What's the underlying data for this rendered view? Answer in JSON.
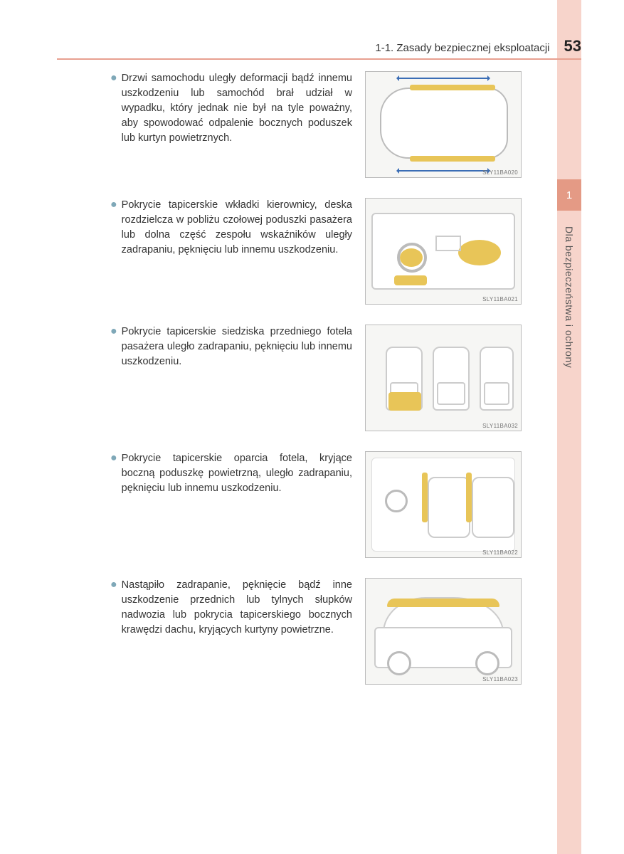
{
  "header": {
    "section_title": "1-1. Zasady bezpiecznej eksploatacji",
    "page_number": "53"
  },
  "side": {
    "chapter_number": "1",
    "chapter_title": "Dla bezpieczeństwa i ochrony"
  },
  "colors": {
    "header_rule": "#e8a090",
    "side_strip": "#f7d4cb",
    "side_tab": "#e49a85",
    "bullet": "#7fa8b8",
    "highlight": "#e8c558",
    "arrow": "#3a6db5",
    "figure_border": "#bbbbbb",
    "figure_bg": "#f6f6f4"
  },
  "items": [
    {
      "text": "Drzwi samochodu uległy deformacji bądź innemu uszkodzeniu lub samochód brał udział w wypadku, który jednak nie był na tyle poważny, aby spowodować odpalenie bocznych poduszek lub kurtyn powietrznych.",
      "figure_label": "SLY11BA020"
    },
    {
      "text": "Pokrycie tapicerskie wkładki kierownicy, deska rozdzielcza w pobliżu czołowej poduszki pasażera lub dolna część zespołu wskaźników uległy zadrapaniu, pęknięciu lub innemu uszkodzeniu.",
      "figure_label": "SLY11BA021"
    },
    {
      "text": "Pokrycie tapicerskie siedziska przedniego fotela pasażera uległo zadrapaniu, pęknięciu lub innemu uszkodzeniu.",
      "figure_label": "SLY11BA032"
    },
    {
      "text": "Pokrycie tapicerskie oparcia fotela, kryjące boczną poduszkę powietrzną, uległo zadrapaniu, pęknięciu lub innemu uszkodzeniu.",
      "figure_label": "SLY11BA022"
    },
    {
      "text": "Nastąpiło zadrapanie, pęknięcie bądź inne uszkodzenie przednich lub tylnych słupków nadwozia lub pokrycia tapicerskiego bocznych krawędzi dachu, kryjących kurtyny powietrzne.",
      "figure_label": "SLY11BA023"
    }
  ]
}
